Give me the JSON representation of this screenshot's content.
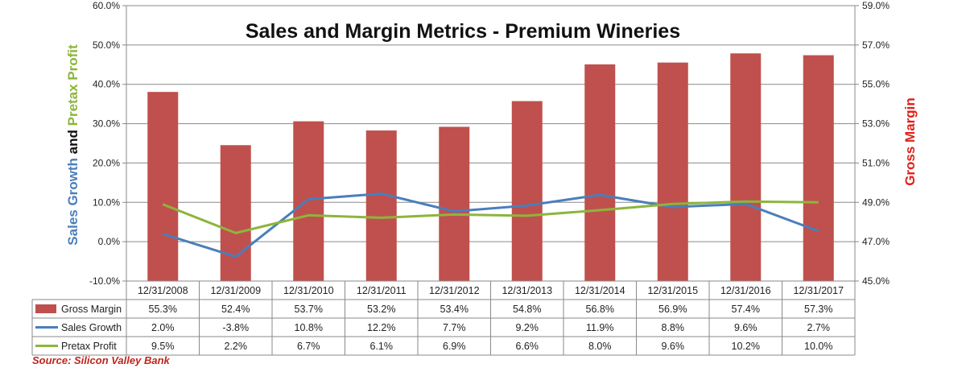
{
  "chart_data": {
    "type": "bar",
    "title": "Sales and Margin Metrics - Premium Wineries",
    "categories": [
      "12/31/2008",
      "12/31/2009",
      "12/31/2010",
      "12/31/2011",
      "12/31/2012",
      "12/31/2013",
      "12/31/2014",
      "12/31/2015",
      "12/31/2016",
      "12/31/2017"
    ],
    "left_axis": {
      "label_parts": [
        {
          "text": "Sales Growth",
          "color": "#4a7ebb"
        },
        {
          "text": " and ",
          "color": "#111111"
        },
        {
          "text": "Pretax Profit",
          "color": "#8db53c"
        }
      ],
      "ylim": [
        -10,
        60
      ],
      "ticks": [
        "-10.0%",
        "0.0%",
        "10.0%",
        "20.0%",
        "30.0%",
        "40.0%",
        "50.0%",
        "60.0%"
      ]
    },
    "right_axis": {
      "label": "Gross Margin",
      "color": "#e0201a",
      "ylim": [
        45,
        60
      ],
      "ticks": [
        "45.0%",
        "47.0%",
        "49.0%",
        "51.0%",
        "53.0%",
        "55.0%",
        "57.0%",
        "59.0%"
      ]
    },
    "series": [
      {
        "name": "Gross Margin",
        "type": "bar",
        "axis": "right",
        "color": "#c0504d",
        "values": [
          55.3,
          52.4,
          53.7,
          53.2,
          53.4,
          54.8,
          56.8,
          56.9,
          57.4,
          57.3
        ],
        "labels": [
          "55.3%",
          "52.4%",
          "53.7%",
          "53.2%",
          "53.4%",
          "54.8%",
          "56.8%",
          "56.9%",
          "57.4%",
          "57.3%"
        ]
      },
      {
        "name": "Sales Growth",
        "type": "line",
        "axis": "left",
        "color": "#4a7ebb",
        "values": [
          2.0,
          -3.8,
          10.8,
          12.2,
          7.7,
          9.2,
          11.9,
          8.8,
          9.6,
          2.7
        ],
        "labels": [
          "2.0%",
          "-3.8%",
          "10.8%",
          "12.2%",
          "7.7%",
          "9.2%",
          "11.9%",
          "8.8%",
          "9.6%",
          "2.7%"
        ]
      },
      {
        "name": "Pretax Profit",
        "type": "line",
        "axis": "left",
        "color": "#8db53c",
        "values": [
          9.5,
          2.2,
          6.7,
          6.1,
          6.9,
          6.6,
          8.0,
          9.6,
          10.2,
          10.0
        ],
        "labels": [
          "9.5%",
          "2.2%",
          "6.7%",
          "6.1%",
          "6.9%",
          "6.6%",
          "8.0%",
          "9.6%",
          "10.2%",
          "10.0%"
        ]
      }
    ],
    "grid": true,
    "legend": "data table below chart",
    "source": "Source: Silicon Valley Bank"
  }
}
